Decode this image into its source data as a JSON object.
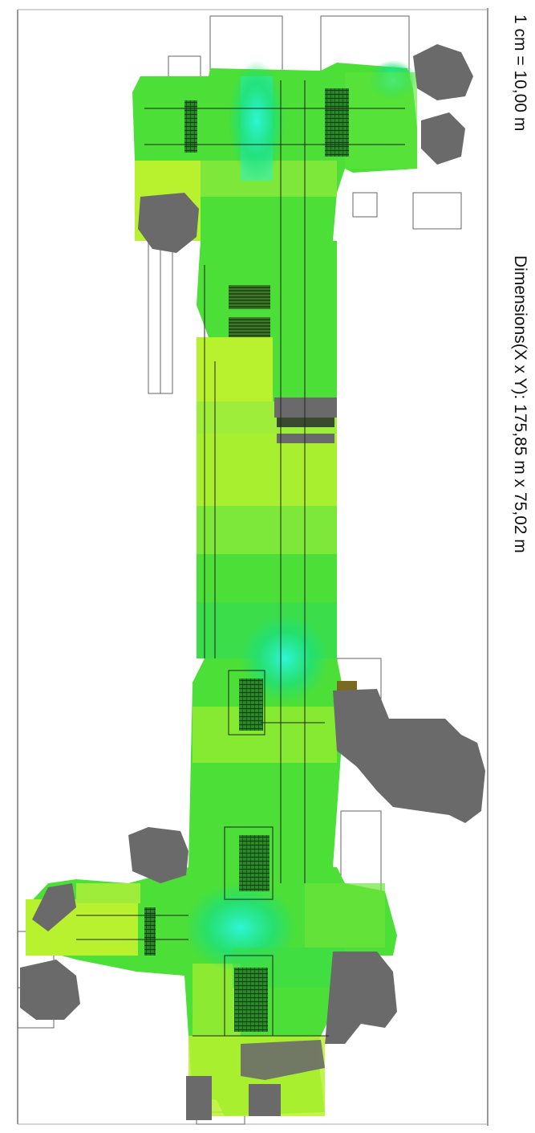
{
  "map": {
    "scale": "1 cm = 10,00 m",
    "dimensions": "Dimensions(X x Y): 175,85 m x 75,02 m",
    "colors": {
      "coverage_light": "#b8f22f",
      "coverage_mid": "#4bdf37",
      "coverage_high": "#1ee06a",
      "coverage_peak": "#2af0cc",
      "obstruction": "#6a6a6a",
      "outline": "#222222",
      "background": "#ffffff"
    }
  }
}
